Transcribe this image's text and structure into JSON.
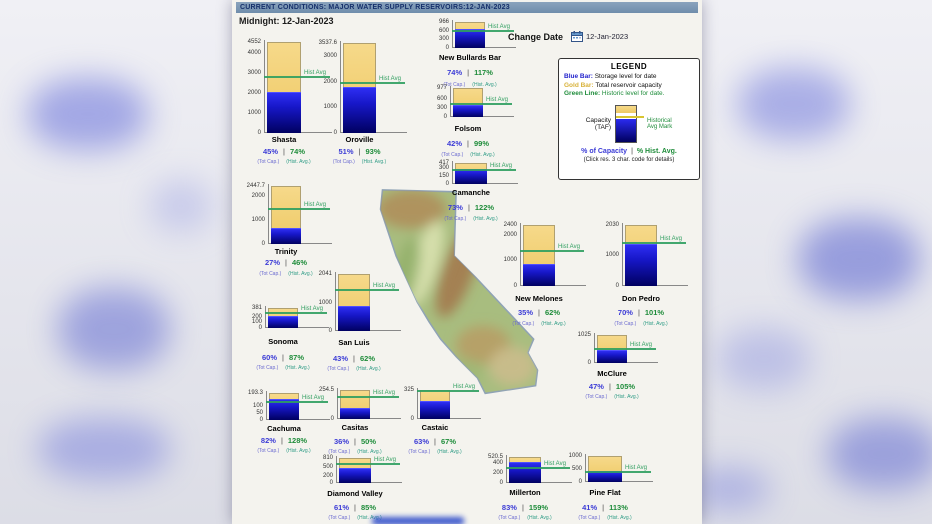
{
  "header": {
    "title": "CURRENT CONDITIONS: MAJOR WATER SUPPLY RESERVOIRS:12-JAN-2023",
    "subtitle": "Midnight: 12-Jan-2023"
  },
  "change_date": {
    "label": "Change Date",
    "value": "12-Jan-2023"
  },
  "legend": {
    "title": "LEGEND",
    "items": [
      {
        "term": "Blue Bar:",
        "desc": " Storage level for date",
        "color": "#2222cc"
      },
      {
        "term": "Gold Bar:",
        "desc": " Total reservoir capacity",
        "color": "#d8b23a"
      },
      {
        "term": "Green Line:",
        "desc": " Historic level for date.",
        "color": "#1e8c3a"
      }
    ],
    "diagram": {
      "left_label": "Capacity\n(TAF)",
      "right_label": "Historical\nAvg Mark"
    },
    "footer_pct": {
      "cap": "% of Capacity",
      "sep": "|",
      "hist": "% Hist. Avg."
    },
    "note": "(Click res. 3 char. code for details)"
  },
  "footnotes": {
    "tot_cap": "(Tot Cap.)",
    "hist_avg": "(Hist. Avg.)",
    "pct_separator": "|"
  },
  "hist_avg_marker_label": "Hist Avg",
  "colors": {
    "storage_blue": "#1717c8",
    "capacity_gold": "#eec964",
    "hist_green": "#2f9e5f",
    "pct_blue": "#3b3bd6",
    "pct_green": "#1e8c3a"
  },
  "chart_data": {
    "type": "bar",
    "title": "CURRENT CONDITIONS: MAJOR WATER SUPPLY RESERVOIRS:12-JAN-2023",
    "date": "12-Jan-2023",
    "units": "TAF",
    "legend_position": "upper-right",
    "reservoirs": [
      {
        "name": "Shasta",
        "capacity_label": "4552",
        "capacity": 4552,
        "axis_ticks": [
          4000,
          3000,
          2000,
          1000,
          0
        ],
        "pct_of_capacity": 45,
        "pct_of_hist_avg": 74
      },
      {
        "name": "Oroville",
        "capacity_label": "3537.6",
        "capacity": 3537.6,
        "axis_ticks": [
          3000,
          2000,
          1000,
          0
        ],
        "pct_of_capacity": 51,
        "pct_of_hist_avg": 93
      },
      {
        "name": "New Bullards Bar",
        "capacity_label": "966",
        "capacity": 966,
        "axis_ticks": [
          600,
          300,
          0
        ],
        "pct_of_capacity": 74,
        "pct_of_hist_avg": 117
      },
      {
        "name": "Folsom",
        "capacity_label": "977",
        "capacity": 977,
        "axis_ticks": [
          600,
          300,
          0
        ],
        "pct_of_capacity": 42,
        "pct_of_hist_avg": 99
      },
      {
        "name": "Camanche",
        "capacity_label": "417",
        "capacity": 417,
        "axis_ticks": [
          300,
          150,
          0
        ],
        "pct_of_capacity": 73,
        "pct_of_hist_avg": 122
      },
      {
        "name": "Trinity",
        "capacity_label": "2447.7",
        "capacity": 2447.7,
        "axis_ticks": [
          2000,
          1000,
          0
        ],
        "pct_of_capacity": 27,
        "pct_of_hist_avg": 46
      },
      {
        "name": "New Melones",
        "capacity_label": "2400",
        "capacity": 2400,
        "axis_ticks": [
          2000,
          1000,
          0
        ],
        "pct_of_capacity": 35,
        "pct_of_hist_avg": 62
      },
      {
        "name": "Don Pedro",
        "capacity_label": "2030",
        "capacity": 2030,
        "axis_ticks": [
          1000,
          0
        ],
        "pct_of_capacity": 70,
        "pct_of_hist_avg": 101
      },
      {
        "name": "Sonoma",
        "capacity_label": "381",
        "capacity": 381,
        "axis_ticks": [
          200,
          100,
          0
        ],
        "pct_of_capacity": 60,
        "pct_of_hist_avg": 87
      },
      {
        "name": "San Luis",
        "capacity_label": "2041",
        "capacity": 2041,
        "axis_ticks": [
          1000,
          0
        ],
        "pct_of_capacity": 43,
        "pct_of_hist_avg": 62
      },
      {
        "name": "McClure",
        "capacity_label": "1025",
        "capacity": 1025,
        "axis_ticks": [
          0
        ],
        "pct_of_capacity": 47,
        "pct_of_hist_avg": 105
      },
      {
        "name": "Cachuma",
        "capacity_label": "193.3",
        "capacity": 193.3,
        "axis_ticks": [
          100,
          50,
          0
        ],
        "pct_of_capacity": 82,
        "pct_of_hist_avg": 128
      },
      {
        "name": "Casitas",
        "capacity_label": "254.5",
        "capacity": 254.5,
        "axis_ticks": [
          0
        ],
        "pct_of_capacity": 36,
        "pct_of_hist_avg": 50
      },
      {
        "name": "Castaic",
        "capacity_label": "325",
        "capacity": 325,
        "axis_ticks": [
          0
        ],
        "pct_of_capacity": 63,
        "pct_of_hist_avg": 67
      },
      {
        "name": "Diamond Valley",
        "capacity_label": "810",
        "capacity": 810,
        "axis_ticks": [
          500,
          200,
          0
        ],
        "pct_of_capacity": 61,
        "pct_of_hist_avg": 85
      },
      {
        "name": "Millerton",
        "capacity_label": "520.5",
        "capacity": 520.5,
        "axis_ticks": [
          400,
          200,
          0
        ],
        "pct_of_capacity": 83,
        "pct_of_hist_avg": 159
      },
      {
        "name": "Pine Flat",
        "capacity_label": "1000",
        "capacity": 1000,
        "axis_ticks": [
          500,
          0
        ],
        "pct_of_capacity": 41,
        "pct_of_hist_avg": 113
      }
    ]
  }
}
